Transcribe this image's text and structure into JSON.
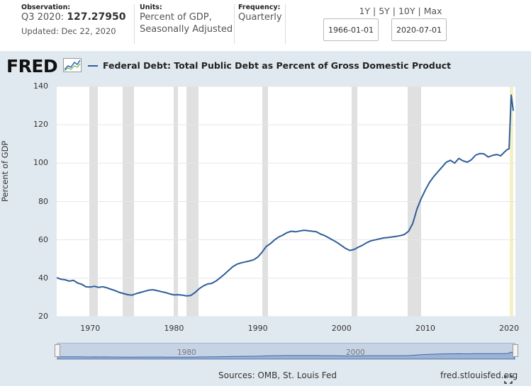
{
  "header": {
    "observation_label": "Observation:",
    "observation_period": "Q3 2020:",
    "observation_value": "127.27950",
    "updated": "Updated: Dec 22, 2020",
    "units_label": "Units:",
    "units_line1": "Percent of GDP,",
    "units_line2": "Seasonally Adjusted",
    "frequency_label": "Frequency:",
    "frequency_value": "Quarterly",
    "ranges": [
      "1Y",
      "5Y",
      "10Y",
      "Max"
    ],
    "start_date": "1966-01-01",
    "end_date": "2020-07-01"
  },
  "logo_text": "FRED",
  "series_title": "Federal Debt: Total Public Debt as Percent of Gross Domestic Product",
  "sources": "Sources: OMB, St. Louis Fed",
  "site": "fred.stlouisfed.org",
  "navigator": {
    "labels": [
      "1980",
      "2000"
    ]
  },
  "colors": {
    "line": "#2f5d99",
    "recession": "#e0e0e0",
    "panel": "#e1e9f0"
  },
  "chart_data": {
    "type": "line",
    "title": "Federal Debt: Total Public Debt as Percent of Gross Domestic Product",
    "xlabel": "",
    "ylabel": "Percent of GDP",
    "xlim": [
      1966.0,
      2020.75
    ],
    "ylim": [
      20,
      140
    ],
    "y_ticks": [
      20,
      40,
      60,
      80,
      100,
      120,
      140
    ],
    "x_ticks": [
      1970,
      1980,
      1990,
      2000,
      2010,
      2020
    ],
    "grid": true,
    "legend": "top-left",
    "recessions": [
      [
        1969.9,
        1970.9
      ],
      [
        1973.9,
        1975.2
      ],
      [
        1980.0,
        1980.5
      ],
      [
        1981.5,
        1982.9
      ],
      [
        1990.5,
        1991.2
      ],
      [
        2001.2,
        2001.9
      ],
      [
        2007.9,
        2009.5
      ],
      [
        2020.1,
        2020.5
      ]
    ],
    "series": [
      {
        "name": "Federal Debt: Total Public Debt as Percent of Gross Domestic Product",
        "points": [
          [
            1966.0,
            40.3
          ],
          [
            1966.5,
            39.5
          ],
          [
            1967.0,
            39.2
          ],
          [
            1967.5,
            38.5
          ],
          [
            1968.0,
            38.9
          ],
          [
            1968.5,
            37.5
          ],
          [
            1969.0,
            36.8
          ],
          [
            1969.5,
            35.5
          ],
          [
            1970.0,
            35.4
          ],
          [
            1970.5,
            35.8
          ],
          [
            1971.0,
            35.2
          ],
          [
            1971.5,
            35.6
          ],
          [
            1972.0,
            35.0
          ],
          [
            1972.5,
            34.2
          ],
          [
            1973.0,
            33.5
          ],
          [
            1973.5,
            32.6
          ],
          [
            1974.0,
            32.0
          ],
          [
            1974.5,
            31.4
          ],
          [
            1975.0,
            31.2
          ],
          [
            1975.5,
            32.0
          ],
          [
            1976.0,
            32.6
          ],
          [
            1976.5,
            33.2
          ],
          [
            1977.0,
            33.8
          ],
          [
            1977.5,
            34.0
          ],
          [
            1978.0,
            33.5
          ],
          [
            1978.5,
            33.0
          ],
          [
            1979.0,
            32.5
          ],
          [
            1979.5,
            31.8
          ],
          [
            1980.0,
            31.3
          ],
          [
            1980.5,
            31.4
          ],
          [
            1981.0,
            31.2
          ],
          [
            1981.5,
            30.8
          ],
          [
            1982.0,
            31.0
          ],
          [
            1982.5,
            32.5
          ],
          [
            1983.0,
            34.5
          ],
          [
            1983.5,
            36.0
          ],
          [
            1984.0,
            37.0
          ],
          [
            1984.5,
            37.3
          ],
          [
            1985.0,
            38.5
          ],
          [
            1985.5,
            40.2
          ],
          [
            1986.0,
            42.0
          ],
          [
            1986.5,
            44.0
          ],
          [
            1987.0,
            46.0
          ],
          [
            1987.5,
            47.3
          ],
          [
            1988.0,
            48.0
          ],
          [
            1988.5,
            48.5
          ],
          [
            1989.0,
            49.0
          ],
          [
            1989.5,
            49.6
          ],
          [
            1990.0,
            51.0
          ],
          [
            1990.5,
            53.5
          ],
          [
            1991.0,
            56.5
          ],
          [
            1991.5,
            58.0
          ],
          [
            1992.0,
            60.0
          ],
          [
            1992.5,
            61.5
          ],
          [
            1993.0,
            62.5
          ],
          [
            1993.5,
            63.8
          ],
          [
            1994.0,
            64.5
          ],
          [
            1994.5,
            64.2
          ],
          [
            1995.0,
            64.6
          ],
          [
            1995.5,
            65.0
          ],
          [
            1996.0,
            64.8
          ],
          [
            1996.5,
            64.5
          ],
          [
            1997.0,
            64.2
          ],
          [
            1997.5,
            63.0
          ],
          [
            1998.0,
            62.2
          ],
          [
            1998.5,
            61.0
          ],
          [
            1999.0,
            59.8
          ],
          [
            1999.5,
            58.5
          ],
          [
            2000.0,
            57.0
          ],
          [
            2000.5,
            55.5
          ],
          [
            2001.0,
            54.5
          ],
          [
            2001.5,
            55.0
          ],
          [
            2002.0,
            56.2
          ],
          [
            2002.5,
            57.2
          ],
          [
            2003.0,
            58.5
          ],
          [
            2003.5,
            59.5
          ],
          [
            2004.0,
            60.0
          ],
          [
            2004.5,
            60.5
          ],
          [
            2005.0,
            61.0
          ],
          [
            2005.5,
            61.2
          ],
          [
            2006.0,
            61.5
          ],
          [
            2006.5,
            61.8
          ],
          [
            2007.0,
            62.2
          ],
          [
            2007.5,
            62.8
          ],
          [
            2008.0,
            64.5
          ],
          [
            2008.5,
            68.5
          ],
          [
            2009.0,
            76.0
          ],
          [
            2009.5,
            81.5
          ],
          [
            2010.0,
            86.0
          ],
          [
            2010.5,
            90.0
          ],
          [
            2011.0,
            93.0
          ],
          [
            2011.5,
            95.5
          ],
          [
            2012.0,
            98.0
          ],
          [
            2012.5,
            100.5
          ],
          [
            2013.0,
            101.5
          ],
          [
            2013.5,
            100.0
          ],
          [
            2014.0,
            102.5
          ],
          [
            2014.5,
            101.2
          ],
          [
            2015.0,
            100.5
          ],
          [
            2015.5,
            101.8
          ],
          [
            2016.0,
            104.2
          ],
          [
            2016.5,
            105.0
          ],
          [
            2017.0,
            104.8
          ],
          [
            2017.5,
            103.2
          ],
          [
            2018.0,
            104.0
          ],
          [
            2018.5,
            104.5
          ],
          [
            2019.0,
            103.8
          ],
          [
            2019.5,
            106.0
          ],
          [
            2019.75,
            107.0
          ],
          [
            2020.0,
            107.5
          ],
          [
            2020.25,
            135.5
          ],
          [
            2020.5,
            127.3
          ]
        ]
      }
    ]
  }
}
